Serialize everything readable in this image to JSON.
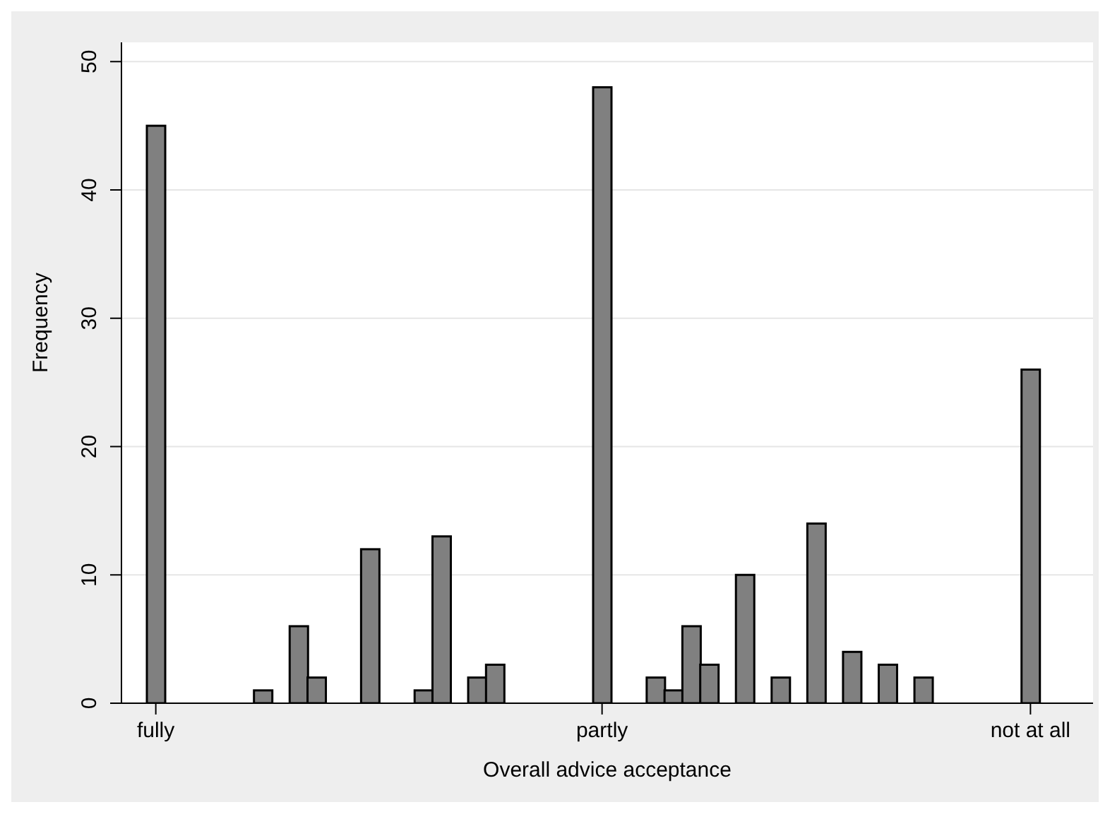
{
  "chart_data": {
    "type": "bar",
    "xlabel": "Overall advice acceptance",
    "ylabel": "Frequency",
    "categories": [
      "fully",
      null,
      null,
      null,
      null,
      null,
      null,
      null,
      null,
      null,
      null,
      null,
      null,
      null,
      null,
      null,
      null,
      null,
      null,
      null,
      null,
      null,
      null,
      null,
      null,
      "partly",
      null,
      null,
      null,
      null,
      null,
      null,
      null,
      null,
      null,
      null,
      null,
      null,
      null,
      null,
      null,
      null,
      null,
      null,
      null,
      null,
      null,
      null,
      null,
      "not at all"
    ],
    "values": [
      45,
      0,
      0,
      0,
      0,
      0,
      1,
      0,
      6,
      2,
      0,
      0,
      12,
      0,
      0,
      1,
      13,
      0,
      2,
      3,
      0,
      0,
      0,
      0,
      0,
      48,
      0,
      0,
      2,
      1,
      6,
      3,
      0,
      10,
      0,
      2,
      0,
      14,
      0,
      4,
      0,
      3,
      0,
      2,
      0,
      0,
      0,
      0,
      0,
      26
    ],
    "color": "#808080",
    "ylim": [
      0,
      51.5
    ],
    "yticks": [
      0,
      10,
      20,
      30,
      40,
      50
    ],
    "grid": "y"
  }
}
